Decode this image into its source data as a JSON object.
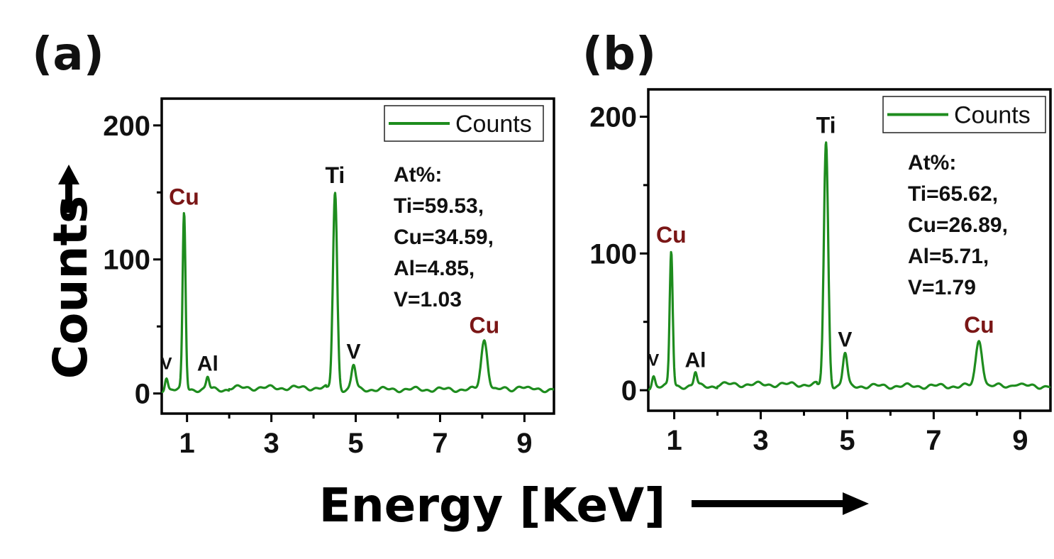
{
  "figure": {
    "xlabel": "Energy [KeV]",
    "ylabel": "Counts",
    "colors": {
      "series": "#1e8c1e",
      "cu_label": "#7a1616",
      "text": "#111111",
      "axes": "#000000"
    }
  },
  "chart_data": [
    {
      "type": "line",
      "panel_label": "(a)",
      "xlim": [
        0.4,
        9.7
      ],
      "ylim": [
        -15,
        220
      ],
      "xticks": [
        1,
        3,
        5,
        7,
        9
      ],
      "yticks": [
        0,
        100,
        200
      ],
      "legend": {
        "placement": "top-right",
        "label": "Counts"
      },
      "composition": [
        "At%:",
        "Ti=59.53,",
        "Cu=34.59,",
        "Al=4.85,",
        "V=1.03"
      ],
      "baseline": 3,
      "peaks": [
        {
          "element": "V",
          "x": 0.51,
          "height": 13,
          "label_x": 0.51,
          "label_y": 18
        },
        {
          "element": "Cu",
          "x": 0.93,
          "height": 134,
          "label_x": 0.93,
          "label_y": 141
        },
        {
          "element": "Al",
          "x": 1.49,
          "height": 12,
          "label_x": 1.49,
          "label_y": 17
        },
        {
          "element": "Ti",
          "x": 4.51,
          "height": 150,
          "label_x": 4.51,
          "label_y": 157
        },
        {
          "element": "V",
          "x": 4.95,
          "height": 21,
          "label_x": 4.95,
          "label_y": 26
        },
        {
          "element": "Cu",
          "x": 8.05,
          "height": 40,
          "label_x": 8.05,
          "label_y": 45
        },
        {
          "element": "",
          "x": 8.9,
          "height": 6
        }
      ]
    },
    {
      "type": "line",
      "panel_label": "(b)",
      "xlim": [
        0.4,
        9.7
      ],
      "ylim": [
        -15,
        220
      ],
      "xticks": [
        1,
        3,
        5,
        7,
        9
      ],
      "yticks": [
        0,
        100,
        200
      ],
      "legend": {
        "placement": "top-right",
        "label": "Counts"
      },
      "composition": [
        "At%:",
        "Ti=65.62,",
        "Cu=26.89,",
        "Al=5.71,",
        "V=1.79"
      ],
      "baseline": 3,
      "peaks": [
        {
          "element": "V",
          "x": 0.52,
          "height": 11,
          "label_x": 0.52,
          "label_y": 18
        },
        {
          "element": "Cu",
          "x": 0.93,
          "height": 101,
          "label_x": 0.93,
          "label_y": 108
        },
        {
          "element": "Al",
          "x": 1.49,
          "height": 13,
          "label_x": 1.49,
          "label_y": 17
        },
        {
          "element": "Ti",
          "x": 4.51,
          "height": 181,
          "label_x": 4.51,
          "label_y": 188
        },
        {
          "element": "V",
          "x": 4.95,
          "height": 27,
          "label_x": 4.95,
          "label_y": 32
        },
        {
          "element": "Cu",
          "x": 8.05,
          "height": 37,
          "label_x": 8.05,
          "label_y": 42
        },
        {
          "element": "",
          "x": 8.9,
          "height": 5
        }
      ]
    }
  ]
}
